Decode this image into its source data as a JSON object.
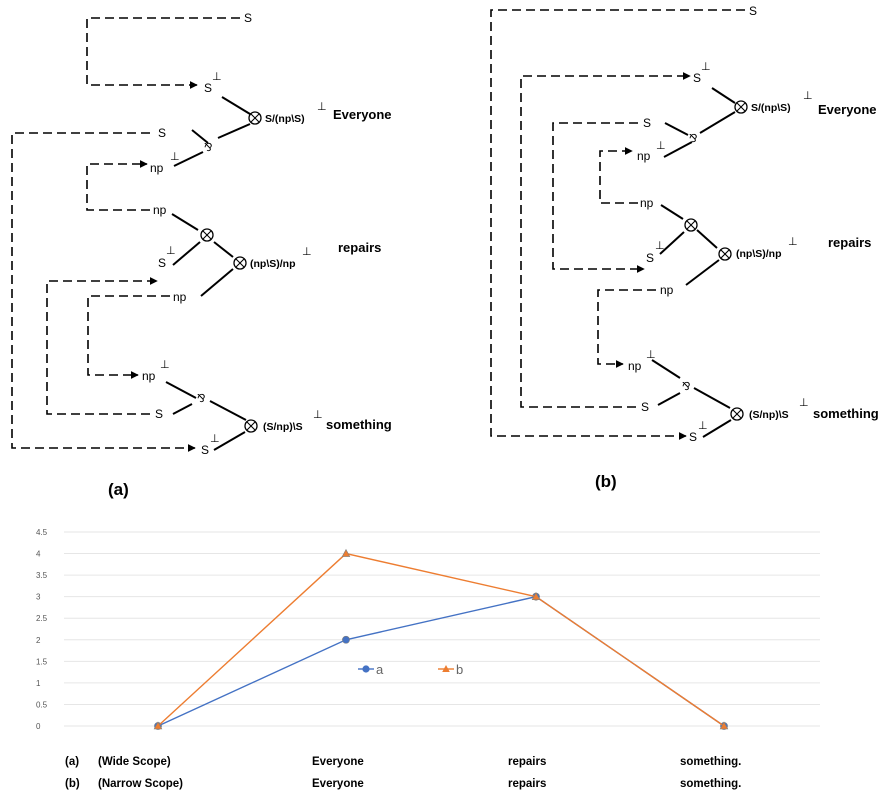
{
  "diagram_a": {
    "caption": "(a)",
    "words": {
      "everyone": "Everyone",
      "repairs": "repairs",
      "something": "something"
    },
    "types": {
      "everyone": "S/(np\\S)",
      "repairs": "(np\\S)/np",
      "something": "(S/np)\\S"
    },
    "nodes": {
      "s_top": "S",
      "s_everyone_neg": "S",
      "s_par": "S",
      "np_everyone_neg": "np",
      "np_repairs_out": "np",
      "s_repairs_neg": "S",
      "np_repairs_in": "np",
      "np_something_neg": "np",
      "s_something_par": "S",
      "s_something_neg": "S"
    },
    "perp": "⊥"
  },
  "diagram_b": {
    "caption": "(b)",
    "words": {
      "everyone": "Everyone",
      "repairs": "repairs",
      "something": "something"
    },
    "types": {
      "everyone": "S/(np\\S)",
      "repairs": "(np\\S)/np",
      "something": "(S/np)\\S"
    },
    "nodes": {
      "s_top": "S",
      "s_everyone_neg": "S",
      "s_par": "S",
      "np_everyone_neg": "np",
      "np_repairs_out": "np",
      "s_repairs_neg": "S",
      "np_repairs_in": "np",
      "np_something_neg": "np",
      "s_something_par": "S",
      "s_something_neg": "S"
    },
    "perp": "⊥"
  },
  "chart_data": {
    "type": "line",
    "categories": [
      "(Wide Scope)",
      "Everyone",
      "repairs",
      "something."
    ],
    "category_rows": [
      {
        "prefix": "(a)",
        "labels": [
          "(Wide Scope)",
          "Everyone",
          "repairs",
          "something."
        ]
      },
      {
        "prefix": "(b)",
        "labels": [
          "(Narrow Scope)",
          "Everyone",
          "repairs",
          "something."
        ]
      }
    ],
    "series": [
      {
        "name": "a",
        "values": [
          0,
          2,
          3,
          0
        ],
        "color": "#4472C4",
        "marker": "circle"
      },
      {
        "name": "b",
        "values": [
          0,
          4,
          3,
          0
        ],
        "color": "#ED7D31",
        "marker": "triangle"
      }
    ],
    "ylim": [
      0,
      4.5
    ],
    "yticks": [
      "0",
      "0.5",
      "1",
      "1.5",
      "2",
      "2.5",
      "3",
      "3.5",
      "4",
      "4.5"
    ],
    "grid": true,
    "legend": "inside-center"
  }
}
